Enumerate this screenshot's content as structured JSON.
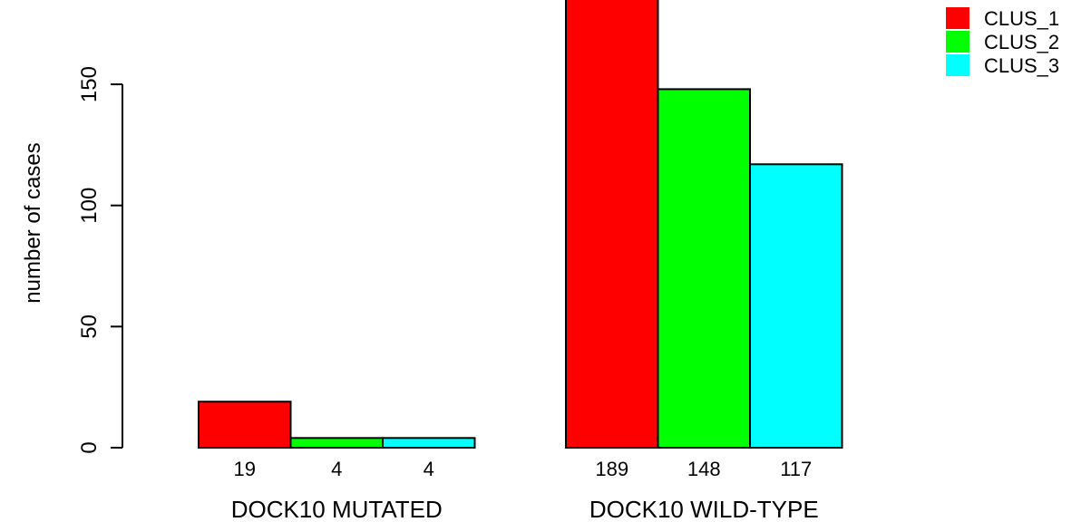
{
  "chart_data": {
    "type": "bar",
    "ylabel": "number of cases",
    "yticks": [
      0,
      50,
      100,
      150
    ],
    "ylim": [
      0,
      189
    ],
    "series_names": [
      "CLUS_1",
      "CLUS_2",
      "CLUS_3"
    ],
    "colors": [
      "#FF0000",
      "#00FF00",
      "#00FFFF"
    ],
    "legend_position": "top-right",
    "groups": [
      {
        "label": "DOCK10 MUTATED",
        "values": [
          19,
          4,
          4
        ]
      },
      {
        "label": "DOCK10 WILD-TYPE",
        "values": [
          189,
          148,
          117
        ]
      }
    ]
  }
}
